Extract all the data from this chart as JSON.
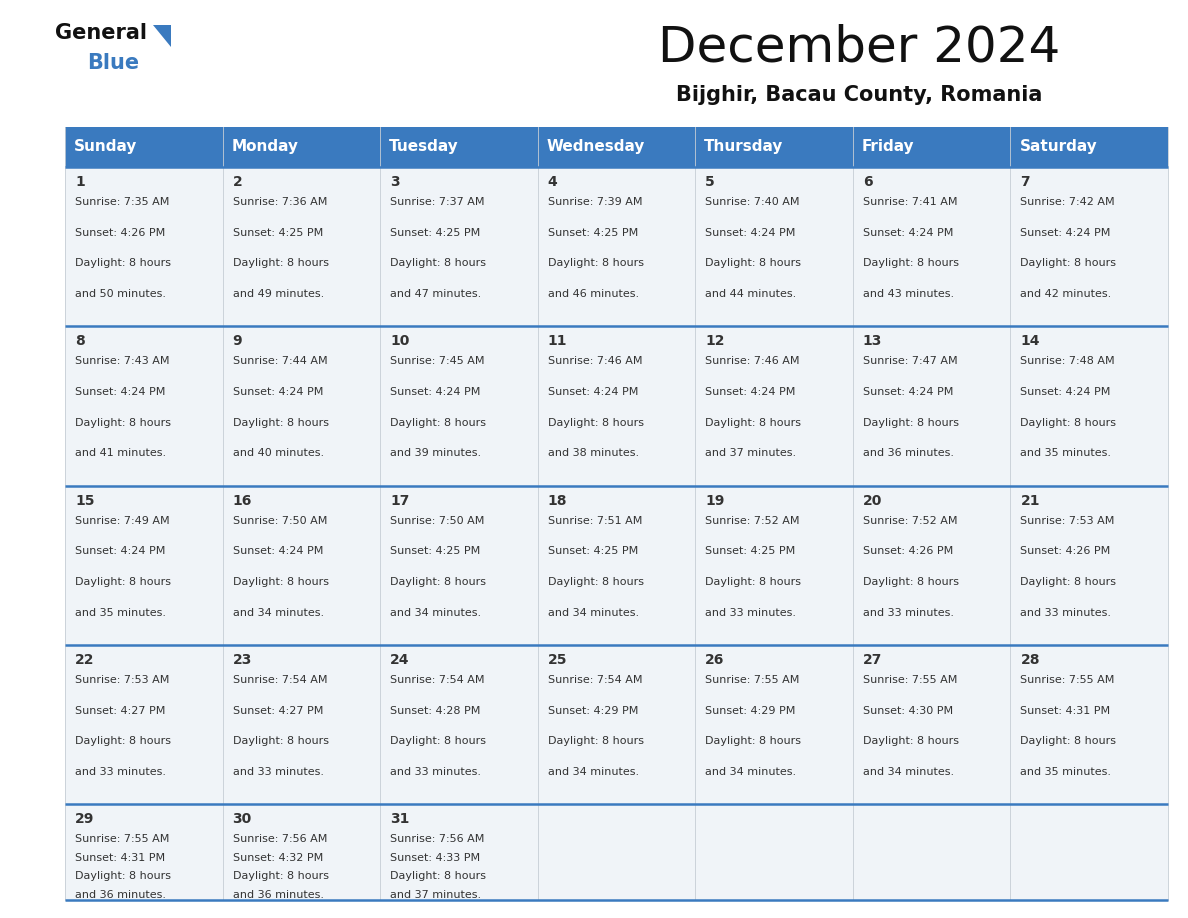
{
  "title": "December 2024",
  "subtitle": "Bijghir, Bacau County, Romania",
  "header_color": "#3a7abf",
  "header_text_color": "#ffffff",
  "cell_bg_color": "#f0f4f8",
  "border_color": "#3a7abf",
  "days_of_week": [
    "Sunday",
    "Monday",
    "Tuesday",
    "Wednesday",
    "Thursday",
    "Friday",
    "Saturday"
  ],
  "calendar_data": [
    [
      {
        "day": 1,
        "sunrise": "7:35 AM",
        "sunset": "4:26 PM",
        "daylight_hrs": 8,
        "daylight_min": 50
      },
      {
        "day": 2,
        "sunrise": "7:36 AM",
        "sunset": "4:25 PM",
        "daylight_hrs": 8,
        "daylight_min": 49
      },
      {
        "day": 3,
        "sunrise": "7:37 AM",
        "sunset": "4:25 PM",
        "daylight_hrs": 8,
        "daylight_min": 47
      },
      {
        "day": 4,
        "sunrise": "7:39 AM",
        "sunset": "4:25 PM",
        "daylight_hrs": 8,
        "daylight_min": 46
      },
      {
        "day": 5,
        "sunrise": "7:40 AM",
        "sunset": "4:24 PM",
        "daylight_hrs": 8,
        "daylight_min": 44
      },
      {
        "day": 6,
        "sunrise": "7:41 AM",
        "sunset": "4:24 PM",
        "daylight_hrs": 8,
        "daylight_min": 43
      },
      {
        "day": 7,
        "sunrise": "7:42 AM",
        "sunset": "4:24 PM",
        "daylight_hrs": 8,
        "daylight_min": 42
      }
    ],
    [
      {
        "day": 8,
        "sunrise": "7:43 AM",
        "sunset": "4:24 PM",
        "daylight_hrs": 8,
        "daylight_min": 41
      },
      {
        "day": 9,
        "sunrise": "7:44 AM",
        "sunset": "4:24 PM",
        "daylight_hrs": 8,
        "daylight_min": 40
      },
      {
        "day": 10,
        "sunrise": "7:45 AM",
        "sunset": "4:24 PM",
        "daylight_hrs": 8,
        "daylight_min": 39
      },
      {
        "day": 11,
        "sunrise": "7:46 AM",
        "sunset": "4:24 PM",
        "daylight_hrs": 8,
        "daylight_min": 38
      },
      {
        "day": 12,
        "sunrise": "7:46 AM",
        "sunset": "4:24 PM",
        "daylight_hrs": 8,
        "daylight_min": 37
      },
      {
        "day": 13,
        "sunrise": "7:47 AM",
        "sunset": "4:24 PM",
        "daylight_hrs": 8,
        "daylight_min": 36
      },
      {
        "day": 14,
        "sunrise": "7:48 AM",
        "sunset": "4:24 PM",
        "daylight_hrs": 8,
        "daylight_min": 35
      }
    ],
    [
      {
        "day": 15,
        "sunrise": "7:49 AM",
        "sunset": "4:24 PM",
        "daylight_hrs": 8,
        "daylight_min": 35
      },
      {
        "day": 16,
        "sunrise": "7:50 AM",
        "sunset": "4:24 PM",
        "daylight_hrs": 8,
        "daylight_min": 34
      },
      {
        "day": 17,
        "sunrise": "7:50 AM",
        "sunset": "4:25 PM",
        "daylight_hrs": 8,
        "daylight_min": 34
      },
      {
        "day": 18,
        "sunrise": "7:51 AM",
        "sunset": "4:25 PM",
        "daylight_hrs": 8,
        "daylight_min": 34
      },
      {
        "day": 19,
        "sunrise": "7:52 AM",
        "sunset": "4:25 PM",
        "daylight_hrs": 8,
        "daylight_min": 33
      },
      {
        "day": 20,
        "sunrise": "7:52 AM",
        "sunset": "4:26 PM",
        "daylight_hrs": 8,
        "daylight_min": 33
      },
      {
        "day": 21,
        "sunrise": "7:53 AM",
        "sunset": "4:26 PM",
        "daylight_hrs": 8,
        "daylight_min": 33
      }
    ],
    [
      {
        "day": 22,
        "sunrise": "7:53 AM",
        "sunset": "4:27 PM",
        "daylight_hrs": 8,
        "daylight_min": 33
      },
      {
        "day": 23,
        "sunrise": "7:54 AM",
        "sunset": "4:27 PM",
        "daylight_hrs": 8,
        "daylight_min": 33
      },
      {
        "day": 24,
        "sunrise": "7:54 AM",
        "sunset": "4:28 PM",
        "daylight_hrs": 8,
        "daylight_min": 33
      },
      {
        "day": 25,
        "sunrise": "7:54 AM",
        "sunset": "4:29 PM",
        "daylight_hrs": 8,
        "daylight_min": 34
      },
      {
        "day": 26,
        "sunrise": "7:55 AM",
        "sunset": "4:29 PM",
        "daylight_hrs": 8,
        "daylight_min": 34
      },
      {
        "day": 27,
        "sunrise": "7:55 AM",
        "sunset": "4:30 PM",
        "daylight_hrs": 8,
        "daylight_min": 34
      },
      {
        "day": 28,
        "sunrise": "7:55 AM",
        "sunset": "4:31 PM",
        "daylight_hrs": 8,
        "daylight_min": 35
      }
    ],
    [
      {
        "day": 29,
        "sunrise": "7:55 AM",
        "sunset": "4:31 PM",
        "daylight_hrs": 8,
        "daylight_min": 36
      },
      {
        "day": 30,
        "sunrise": "7:56 AM",
        "sunset": "4:32 PM",
        "daylight_hrs": 8,
        "daylight_min": 36
      },
      {
        "day": 31,
        "sunrise": "7:56 AM",
        "sunset": "4:33 PM",
        "daylight_hrs": 8,
        "daylight_min": 37
      },
      null,
      null,
      null,
      null
    ]
  ],
  "logo_general_color": "#1a1a1a",
  "logo_blue_color": "#3a7abf",
  "text_color": "#333333",
  "title_fontsize": 36,
  "subtitle_fontsize": 15,
  "header_fontsize": 11,
  "day_num_fontsize": 10,
  "cell_text_fontsize": 8,
  "fig_width": 11.88,
  "fig_height": 9.18
}
